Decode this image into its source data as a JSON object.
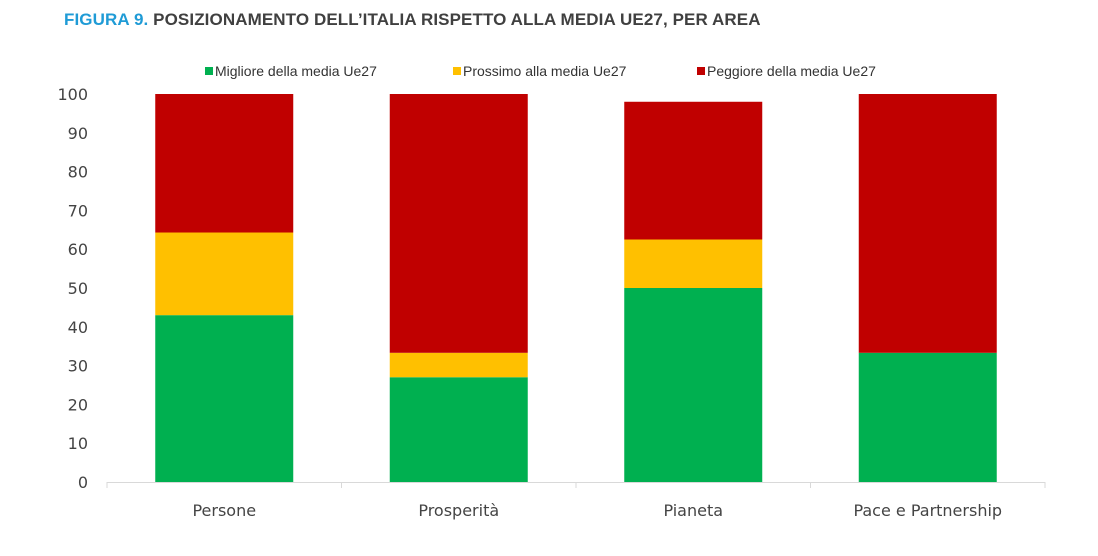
{
  "title": {
    "prefix": "FIGURA 9.",
    "text": "POSIZIONAMENTO DELL’ITALIA RISPETTO ALLA MEDIA UE27, PER AREA"
  },
  "colors": {
    "title_prefix": "#1f9bd6",
    "better": "#00b050",
    "close": "#ffc000",
    "worse": "#c00000"
  },
  "chart_data": {
    "type": "bar",
    "stacked": true,
    "categories": [
      "Persone",
      "Prosperità",
      "Pianeta",
      "Pace e Partnership"
    ],
    "series": [
      {
        "name": "Migliore della media Ue27",
        "color": "#00b050",
        "values": [
          43,
          27,
          50,
          33.3
        ]
      },
      {
        "name": "Prossimo alla media Ue27",
        "color": "#ffc000",
        "values": [
          21.3,
          6.3,
          12.5,
          0
        ]
      },
      {
        "name": "Peggiore della media Ue27",
        "color": "#c00000",
        "values": [
          35.7,
          66.7,
          35.5,
          66.7
        ]
      }
    ],
    "ylim": [
      0,
      100
    ],
    "yticks": [
      0,
      10,
      20,
      30,
      40,
      50,
      60,
      70,
      80,
      90,
      100
    ],
    "grid": false,
    "legend": "top-center"
  }
}
